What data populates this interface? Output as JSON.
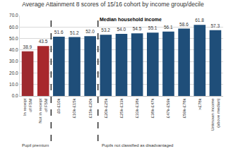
{
  "chart_data": {
    "type": "bar",
    "title": "Average Attainment 8 scores of 15/16 cohort by income group/decile",
    "categories": [
      "In receipt of FSM",
      "Not in receipt of FSM",
      "£0-£10k",
      "£10k-£15k",
      "£15k-£20k",
      "£20k-£25k",
      "£25k-£33k",
      "£33k-£38k",
      "£38k-£47k",
      "£47k-£59k",
      "£59k-£78k",
      ">£78k",
      "Unknown income (above median)"
    ],
    "values": [
      38.9,
      43.5,
      51.6,
      51.2,
      52.0,
      53.2,
      54.0,
      54.5,
      55.1,
      56.1,
      58.6,
      61.8,
      57.3
    ],
    "value_labels": [
      "38.9",
      "43.5",
      "51.6",
      "51.2",
      "52.0",
      "53.2",
      "54.0",
      "54.5",
      "55.1",
      "56.1",
      "58.6",
      "61.8",
      "57.3"
    ],
    "colors": [
      "#9e2a2f",
      "#a8282c",
      "#1f4e79",
      "#1f4e79",
      "#1f4e79",
      "#1f4e79",
      "#1f4e79",
      "#1f4e79",
      "#1f4e79",
      "#1f4e79",
      "#1f4e79",
      "#1f4e79",
      "#1f4e79"
    ],
    "ylim": [
      0,
      70
    ],
    "yticks": [
      {
        "value": 0,
        "label": "0.0"
      },
      {
        "value": 10,
        "label": "10.0"
      },
      {
        "value": 20,
        "label": "20.0"
      },
      {
        "value": 30,
        "label": "30.0"
      },
      {
        "value": 40,
        "label": "40.0"
      },
      {
        "value": 50,
        "label": "50.0"
      },
      {
        "value": 60,
        "label": "60.0"
      },
      {
        "value": 70,
        "label": "70.0"
      }
    ],
    "grid": true,
    "data_labels": true,
    "annotations": [
      {
        "text": "Median household income"
      },
      {
        "text": "Pupil premium"
      },
      {
        "text": "Pupils not classified as disadvantaged"
      }
    ]
  }
}
